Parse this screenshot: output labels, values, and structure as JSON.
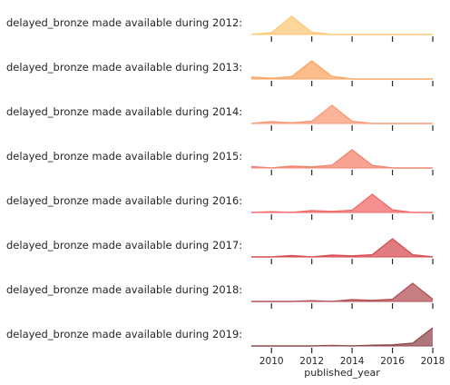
{
  "chart_data": {
    "type": "area",
    "xlabel": "published_year",
    "xlim": [
      2009,
      2018
    ],
    "xticks": [
      2010,
      2012,
      2014,
      2016,
      2018
    ],
    "x": [
      2009,
      2010,
      2011,
      2012,
      2013,
      2014,
      2015,
      2016,
      2017,
      2018
    ],
    "series": [
      {
        "name": "delayed_bronze made available during 2012:",
        "color": "#fbc97a",
        "values": [
          0.0,
          0.1,
          1.0,
          0.12,
          0.0,
          0.0,
          0.0,
          0.0,
          0.0,
          0.0
        ]
      },
      {
        "name": "delayed_bronze made available during 2013:",
        "color": "#f9a766",
        "values": [
          0.1,
          0.04,
          0.12,
          1.0,
          0.14,
          0.0,
          0.0,
          0.0,
          0.0,
          0.0
        ]
      },
      {
        "name": "delayed_bronze made available during 2014:",
        "color": "#fa9a78",
        "values": [
          0.0,
          0.1,
          0.04,
          0.12,
          1.0,
          0.12,
          0.0,
          0.0,
          0.0,
          0.0
        ]
      },
      {
        "name": "delayed_bronze made available during 2015:",
        "color": "#f38470",
        "values": [
          0.08,
          0.0,
          0.1,
          0.06,
          0.15,
          1.0,
          0.14,
          0.0,
          0.0,
          0.0
        ]
      },
      {
        "name": "delayed_bronze made available during 2016:",
        "color": "#f26b6b",
        "values": [
          0.0,
          0.04,
          0.0,
          0.1,
          0.06,
          0.12,
          1.0,
          0.14,
          0.0,
          0.0
        ]
      },
      {
        "name": "delayed_bronze made available during 2017:",
        "color": "#d64f55",
        "values": [
          0.0,
          0.0,
          0.08,
          0.0,
          0.1,
          0.06,
          0.12,
          1.0,
          0.12,
          0.0
        ]
      },
      {
        "name": "delayed_bronze made available during 2018:",
        "color": "#b45358",
        "values": [
          0.0,
          0.0,
          0.0,
          0.04,
          0.0,
          0.1,
          0.06,
          0.12,
          1.0,
          0.12
        ]
      },
      {
        "name": "delayed_bronze made available during 2019:",
        "color": "#914a4f",
        "values": [
          0.0,
          0.0,
          0.0,
          0.0,
          0.03,
          0.0,
          0.04,
          0.06,
          0.15,
          1.0
        ]
      }
    ]
  }
}
